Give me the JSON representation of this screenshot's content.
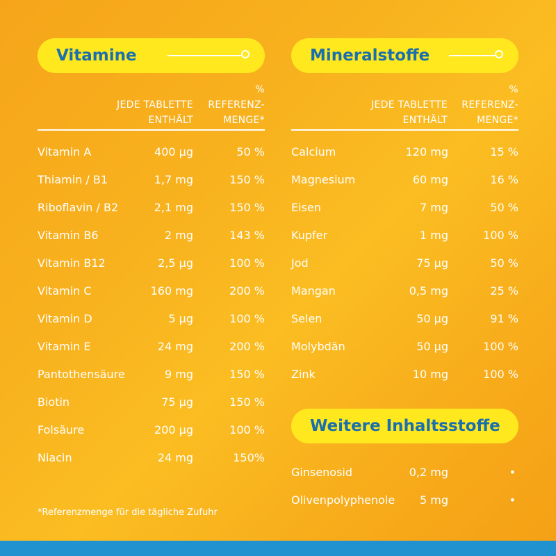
{
  "vitamins": {
    "title": "Vitamine",
    "col_amount_line1": "JEDE TABLETTE",
    "col_amount_line2": "ENTHÄLT",
    "col_ref_line1": "%",
    "col_ref_line2": "REFERENZ-",
    "col_ref_line3": "MENGE*",
    "rows": [
      {
        "name": "Vitamin A",
        "amount": "400 µg",
        "ref": "50 %"
      },
      {
        "name": "Thiamin / B1",
        "amount": "1,7 mg",
        "ref": "150 %"
      },
      {
        "name": "Riboflavin / B2",
        "amount": "2,1 mg",
        "ref": "150 %"
      },
      {
        "name": "Vitamin B6",
        "amount": "2 mg",
        "ref": "143 %"
      },
      {
        "name": "Vitamin B12",
        "amount": "2,5 µg",
        "ref": "100 %"
      },
      {
        "name": "Vitamin C",
        "amount": "160 mg",
        "ref": "200 %"
      },
      {
        "name": "Vitamin D",
        "amount": "5 µg",
        "ref": "100 %"
      },
      {
        "name": "Vitamin E",
        "amount": "24 mg",
        "ref": "200 %"
      },
      {
        "name": "Pantothensäure",
        "amount": "9 mg",
        "ref": "150 %"
      },
      {
        "name": "Biotin",
        "amount": "75 µg",
        "ref": "150 %"
      },
      {
        "name": "Folsäure",
        "amount": "200 µg",
        "ref": "100 %"
      },
      {
        "name": "Niacin",
        "amount": "24 mg",
        "ref": "150%"
      }
    ]
  },
  "minerals": {
    "title": "Mineralstoffe",
    "col_amount_line1": "JEDE TABLETTE",
    "col_amount_line2": "ENTHÄLT",
    "col_ref_line1": "%",
    "col_ref_line2": "REFERENZ-",
    "col_ref_line3": "MENGE*",
    "rows": [
      {
        "name": "Calcium",
        "amount": "120 mg",
        "ref": "15 %"
      },
      {
        "name": "Magnesium",
        "amount": "60 mg",
        "ref": "16 %"
      },
      {
        "name": "Eisen",
        "amount": "7 mg",
        "ref": "50 %"
      },
      {
        "name": "Kupfer",
        "amount": "1 mg",
        "ref": "100 %"
      },
      {
        "name": "Jod",
        "amount": "75 µg",
        "ref": "50 %"
      },
      {
        "name": "Mangan",
        "amount": "0,5 mg",
        "ref": "25 %"
      },
      {
        "name": "Selen",
        "amount": "50 µg",
        "ref": "91 %"
      },
      {
        "name": "Molybdän",
        "amount": "50 µg",
        "ref": "100 %"
      },
      {
        "name": "Zink",
        "amount": "10 mg",
        "ref": "100 %"
      }
    ]
  },
  "others": {
    "title": "Weitere Inhaltsstoffe",
    "rows": [
      {
        "name": "Ginsenosid",
        "amount": "0,2 mg",
        "ref": "•"
      },
      {
        "name": "Olivenpolyphenole",
        "amount": "5 mg",
        "ref": "•"
      }
    ]
  },
  "footnote": "*Referenzmenge für die tägliche Zufuhr",
  "colors": {
    "background": "#f8b21e",
    "pill": "#ffe81e",
    "pill_text": "#1a6fad",
    "bottom_stripe": "#1f92cf",
    "text": "#ffffff"
  }
}
